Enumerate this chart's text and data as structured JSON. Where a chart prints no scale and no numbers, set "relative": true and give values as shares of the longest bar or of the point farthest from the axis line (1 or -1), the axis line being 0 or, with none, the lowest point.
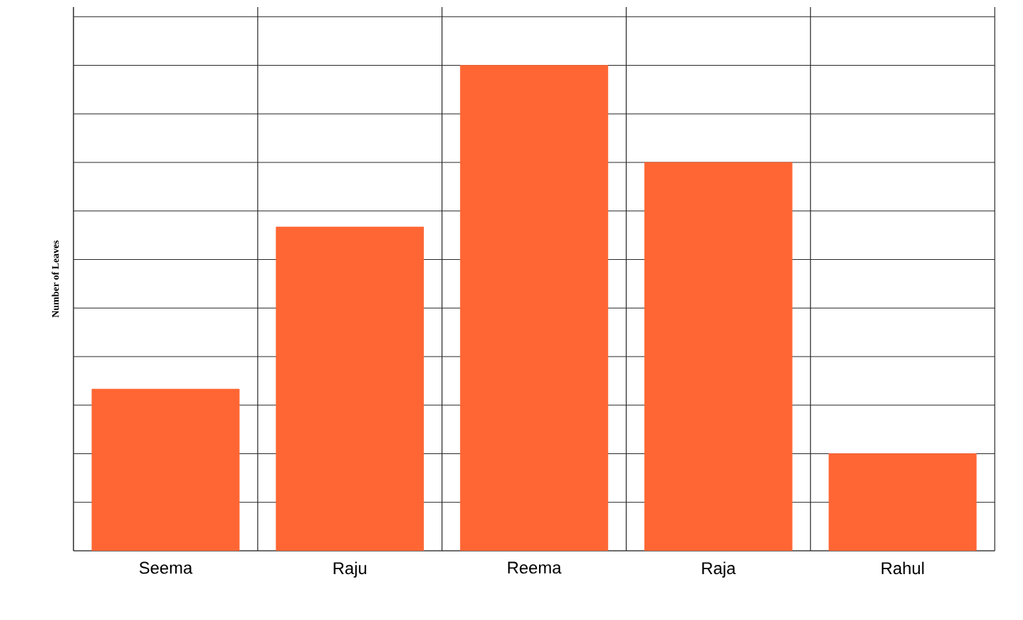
{
  "chart_data": {
    "type": "bar",
    "ylabel": "Number of Leaves",
    "categories": [
      "Seema",
      "Raju",
      "Reema",
      "Raja",
      "Rahul"
    ],
    "values": [
      0.333,
      0.667,
      1,
      0.8,
      0.2
    ],
    "color": "#ff6633",
    "relative": true,
    "grid": true
  }
}
